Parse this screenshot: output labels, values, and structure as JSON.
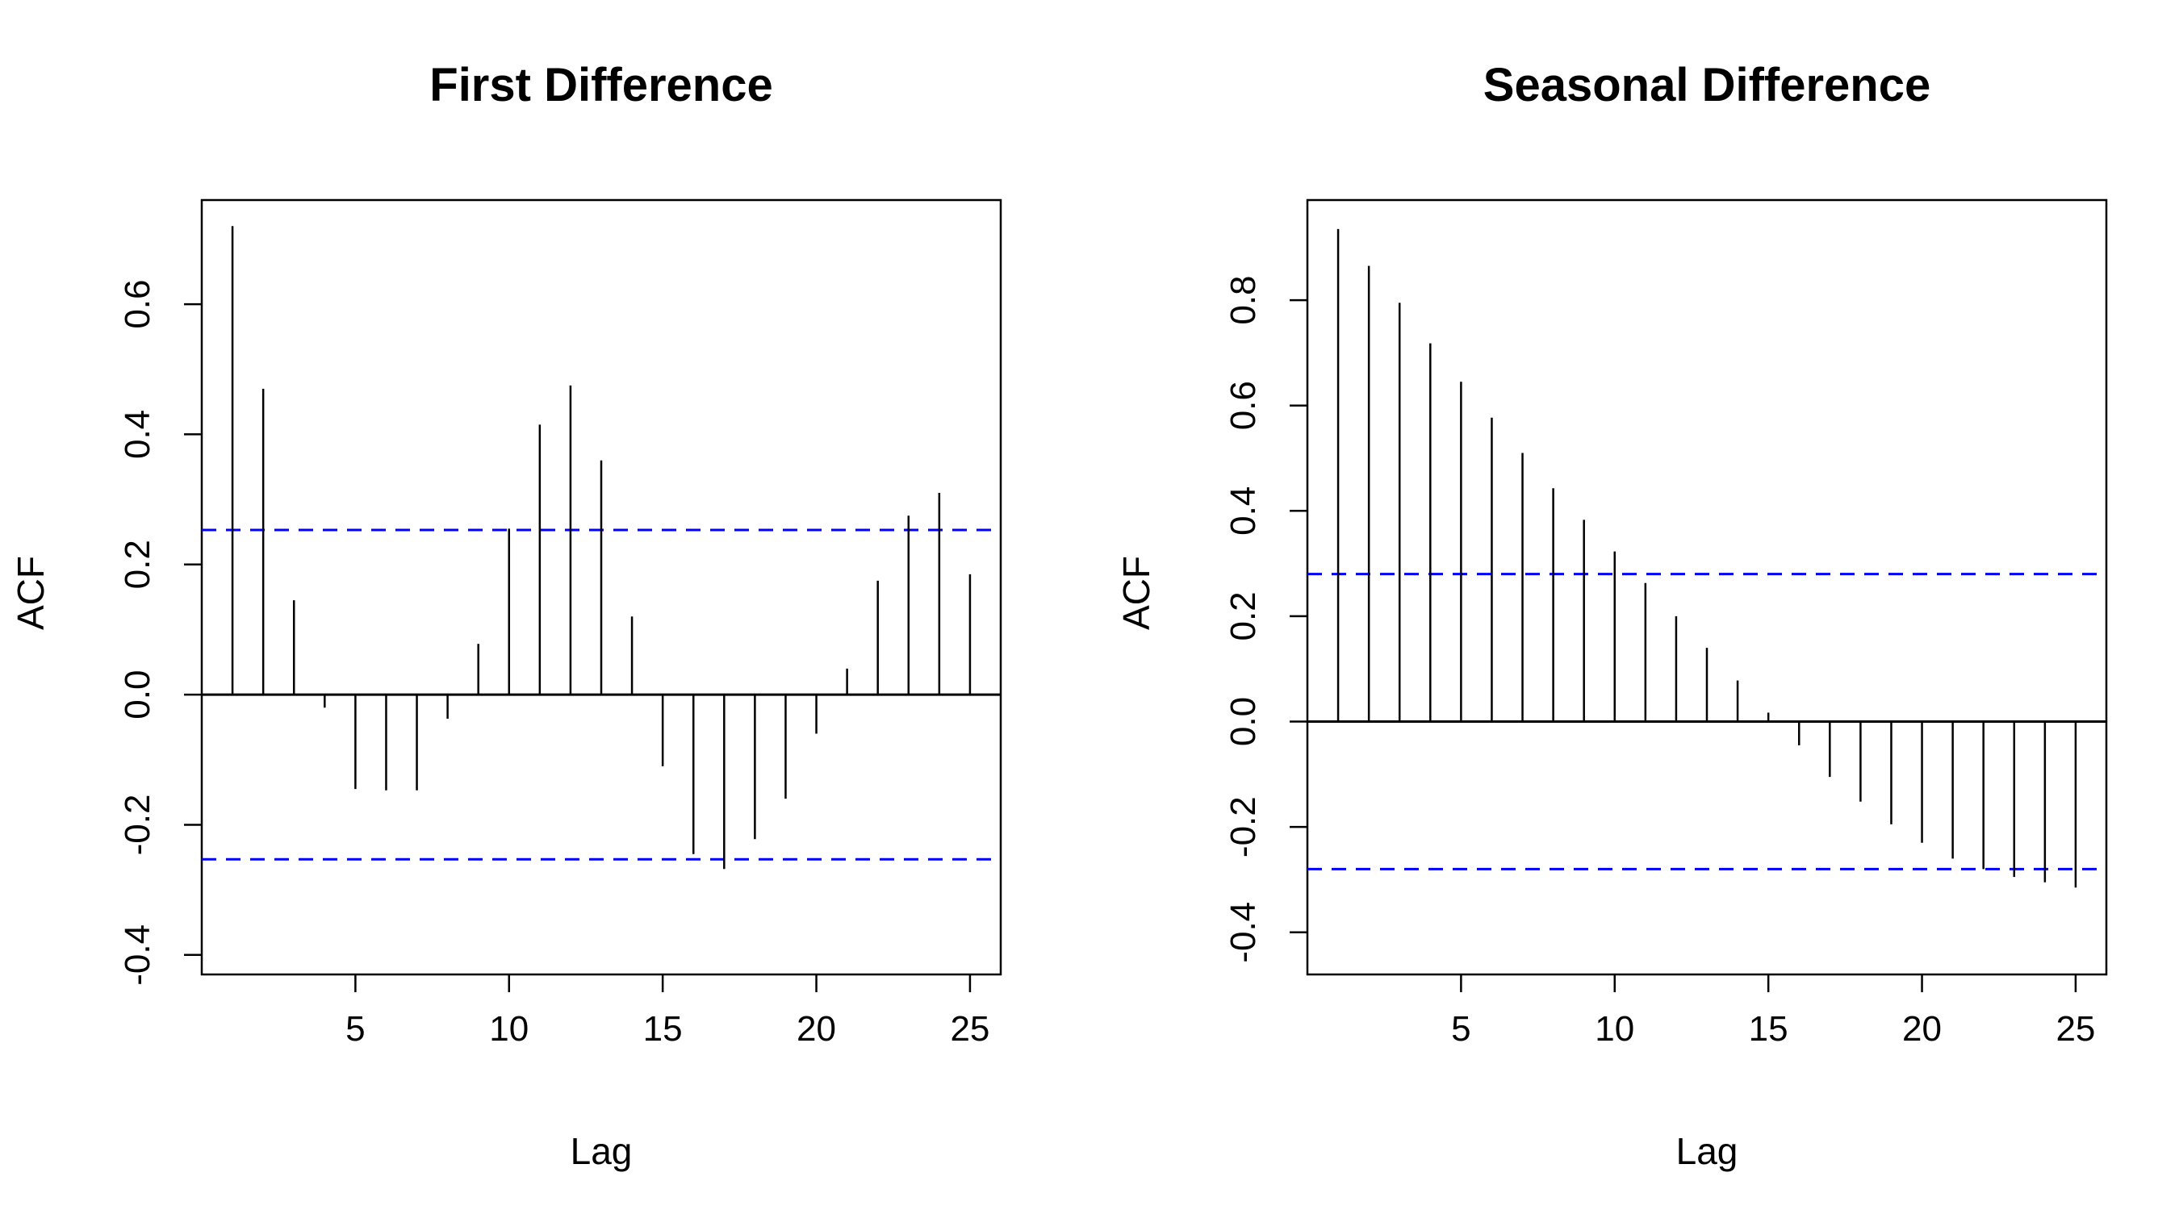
{
  "chart_data": [
    {
      "type": "bar",
      "title": "First Difference",
      "xlabel": "Lag",
      "ylabel": "ACF",
      "x": [
        1,
        2,
        3,
        4,
        5,
        6,
        7,
        8,
        9,
        10,
        11,
        12,
        13,
        14,
        15,
        16,
        17,
        18,
        19,
        20,
        21,
        22,
        23,
        24,
        25
      ],
      "values": [
        0.72,
        0.47,
        0.145,
        -0.02,
        -0.145,
        -0.147,
        -0.147,
        -0.037,
        0.078,
        0.255,
        0.415,
        0.475,
        0.36,
        0.12,
        -0.11,
        -0.245,
        -0.268,
        -0.222,
        -0.16,
        -0.06,
        0.04,
        0.175,
        0.275,
        0.31,
        0.185
      ],
      "ci": 0.253,
      "xlim": [
        0,
        26
      ],
      "ylim": [
        -0.43,
        0.76
      ],
      "xticks": [
        "5",
        "10",
        "15",
        "20",
        "25"
      ],
      "yticks": [
        "-0.4",
        "-0.2",
        "0.0",
        "0.2",
        "0.4",
        "0.6"
      ]
    },
    {
      "type": "bar",
      "title": "Seasonal Difference",
      "xlabel": "Lag",
      "ylabel": "ACF",
      "x": [
        1,
        2,
        3,
        4,
        5,
        6,
        7,
        8,
        9,
        10,
        11,
        12,
        13,
        14,
        15,
        16,
        17,
        18,
        19,
        20,
        21,
        22,
        23,
        24,
        25
      ],
      "values": [
        0.935,
        0.865,
        0.795,
        0.718,
        0.645,
        0.577,
        0.51,
        0.443,
        0.383,
        0.323,
        0.263,
        0.2,
        0.14,
        0.078,
        0.017,
        -0.045,
        -0.105,
        -0.152,
        -0.195,
        -0.23,
        -0.26,
        -0.28,
        -0.295,
        -0.305,
        -0.315
      ],
      "ci": 0.28,
      "xlim": [
        0,
        26
      ],
      "ylim": [
        -0.48,
        0.99
      ],
      "xticks": [
        "5",
        "10",
        "15",
        "20",
        "25"
      ],
      "yticks": [
        "-0.4",
        "-0.2",
        "0.0",
        "0.2",
        "0.4",
        "0.6",
        "0.8"
      ]
    }
  ]
}
